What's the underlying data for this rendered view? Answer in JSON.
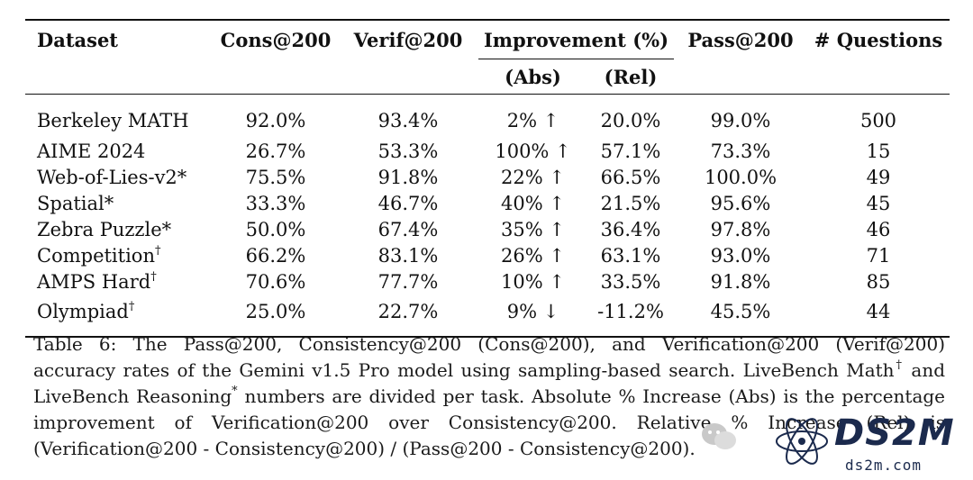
{
  "table": {
    "headers": {
      "dataset": "Dataset",
      "cons": "Cons@200",
      "verif": "Verif@200",
      "improvement": "Improvement (%)",
      "abs": "(Abs)",
      "rel": "(Rel)",
      "pass": "Pass@200",
      "questions": "# Questions"
    },
    "rows": [
      {
        "dataset": "Berkeley MATH",
        "mark": "",
        "cons": "92.0%",
        "verif": "93.4%",
        "abs": "2% ↑",
        "rel": "20.0%",
        "pass": "99.0%",
        "questions": "500"
      },
      {
        "dataset": "AIME 2024",
        "mark": "",
        "cons": "26.7%",
        "verif": "53.3%",
        "abs": "100% ↑",
        "rel": "57.1%",
        "pass": "73.3%",
        "questions": "15"
      },
      {
        "dataset": "Web-of-Lies-v2*",
        "mark": "",
        "cons": "75.5%",
        "verif": "91.8%",
        "abs": "22% ↑",
        "rel": "66.5%",
        "pass": "100.0%",
        "questions": "49"
      },
      {
        "dataset": "Spatial*",
        "mark": "",
        "cons": "33.3%",
        "verif": "46.7%",
        "abs": "40% ↑",
        "rel": "21.5%",
        "pass": "95.6%",
        "questions": "45"
      },
      {
        "dataset": "Zebra Puzzle*",
        "mark": "",
        "cons": "50.0%",
        "verif": "67.4%",
        "abs": "35% ↑",
        "rel": "36.4%",
        "pass": "97.8%",
        "questions": "46"
      },
      {
        "dataset": "Competition",
        "mark": "†",
        "cons": "66.2%",
        "verif": "83.1%",
        "abs": "26% ↑",
        "rel": "63.1%",
        "pass": "93.0%",
        "questions": "71"
      },
      {
        "dataset": "AMPS Hard",
        "mark": "†",
        "cons": "70.6%",
        "verif": "77.7%",
        "abs": "10% ↑",
        "rel": "33.5%",
        "pass": "91.8%",
        "questions": "85"
      },
      {
        "dataset": "Olympiad",
        "mark": "†",
        "cons": "25.0%",
        "verif": "22.7%",
        "abs": "9% ↓",
        "rel": "-11.2%",
        "pass": "45.5%",
        "questions": "44"
      }
    ]
  },
  "caption": {
    "part1": "Table 6: The Pass@200, Consistency@200 (Cons@200), and Verification@200 (Verif@200) accuracy rates of the Gemini v1.5 Pro model using sampling-based search. LiveBench Math",
    "dagger": "†",
    "part2": " and LiveBench Reasoning",
    "star": "*",
    "part3": " numbers are divided per task. Absolute % Increase (Abs) is the percentage improvement of Verification@200 over Consistency@200. Relative % Increase (Rel) is (Verification@200 - Consistency@200) / (Pass@200 - Consistency@200)."
  },
  "watermark": {
    "brand": "DS2M",
    "url": "ds2m.com"
  }
}
